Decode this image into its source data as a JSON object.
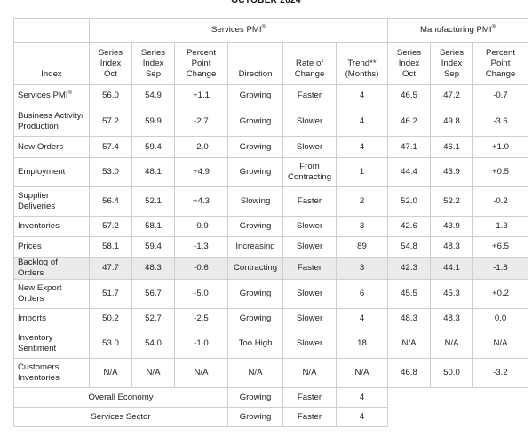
{
  "header_title": "OCTOBER 2024",
  "groups": {
    "services": "Services PMI",
    "manufacturing": "Manufacturing PMI",
    "reg_mark": "®"
  },
  "columns": {
    "index": "Index",
    "svc_oct": "Series Index Oct",
    "svc_sep": "Series Index Sep",
    "svc_ppc": "Percent Point Change",
    "direction": "Direction",
    "rate": "Rate of Change",
    "trend": "Trend** (Months)",
    "mfg_oct": "Series Index Oct",
    "mfg_sep": "Series Index Sep",
    "mfg_ppc": "Percent Point Change"
  },
  "rows": [
    {
      "index": "Services PMI",
      "reg": "®",
      "svc_oct": "56.0",
      "svc_sep": "54.9",
      "svc_ppc": "+1.1",
      "direction": "Growing",
      "rate": "Faster",
      "trend": "4",
      "mfg_oct": "46.5",
      "mfg_sep": "47.2",
      "mfg_ppc": "-0.7"
    },
    {
      "index": "Business Activity/ Production",
      "reg": "",
      "svc_oct": "57.2",
      "svc_sep": "59.9",
      "svc_ppc": "-2.7",
      "direction": "Growing",
      "rate": "Slower",
      "trend": "4",
      "mfg_oct": "46.2",
      "mfg_sep": "49.8",
      "mfg_ppc": "-3.6"
    },
    {
      "index": "New Orders",
      "reg": "",
      "svc_oct": "57.4",
      "svc_sep": "59.4",
      "svc_ppc": "-2.0",
      "direction": "Growing",
      "rate": "Slower",
      "trend": "4",
      "mfg_oct": "47.1",
      "mfg_sep": "46.1",
      "mfg_ppc": "+1.0"
    },
    {
      "index": "Employment",
      "reg": "",
      "svc_oct": "53.0",
      "svc_sep": "48.1",
      "svc_ppc": "+4.9",
      "direction": "Growing",
      "rate": "From Contracting",
      "trend": "1",
      "mfg_oct": "44.4",
      "mfg_sep": "43.9",
      "mfg_ppc": "+0.5"
    },
    {
      "index": "Supplier Deliveries",
      "reg": "",
      "svc_oct": "56.4",
      "svc_sep": "52.1",
      "svc_ppc": "+4.3",
      "direction": "Slowing",
      "rate": "Faster",
      "trend": "2",
      "mfg_oct": "52.0",
      "mfg_sep": "52.2",
      "mfg_ppc": "-0.2"
    },
    {
      "index": "Inventories",
      "reg": "",
      "svc_oct": "57.2",
      "svc_sep": "58.1",
      "svc_ppc": "-0.9",
      "direction": "Growing",
      "rate": "Slower",
      "trend": "3",
      "mfg_oct": "42.6",
      "mfg_sep": "43.9",
      "mfg_ppc": "-1.3"
    },
    {
      "index": "Prices",
      "reg": "",
      "svc_oct": "58.1",
      "svc_sep": "59.4",
      "svc_ppc": "-1.3",
      "direction": "Increasing",
      "rate": "Slower",
      "trend": "89",
      "mfg_oct": "54.8",
      "mfg_sep": "48.3",
      "mfg_ppc": "+6.5"
    },
    {
      "index": "Backlog of Orders",
      "reg": "",
      "svc_oct": "47.7",
      "svc_sep": "48.3",
      "svc_ppc": "-0.6",
      "direction": "Contracting",
      "rate": "Faster",
      "trend": "3",
      "mfg_oct": "42.3",
      "mfg_sep": "44.1",
      "mfg_ppc": "-1.8"
    },
    {
      "index": "New Export Orders",
      "reg": "",
      "svc_oct": "51.7",
      "svc_sep": "56.7",
      "svc_ppc": "-5.0",
      "direction": "Growing",
      "rate": "Slower",
      "trend": "6",
      "mfg_oct": "45.5",
      "mfg_sep": "45.3",
      "mfg_ppc": "+0.2"
    },
    {
      "index": "Imports",
      "reg": "",
      "svc_oct": "50.2",
      "svc_sep": "52.7",
      "svc_ppc": "-2.5",
      "direction": "Growing",
      "rate": "Slower",
      "trend": "4",
      "mfg_oct": "48.3",
      "mfg_sep": "48.3",
      "mfg_ppc": "0.0"
    },
    {
      "index": "Inventory Sentiment",
      "reg": "",
      "svc_oct": "53.0",
      "svc_sep": "54.0",
      "svc_ppc": "-1.0",
      "direction": "Too High",
      "rate": "Slower",
      "trend": "18",
      "mfg_oct": "N/A",
      "mfg_sep": "N/A",
      "mfg_ppc": "N/A"
    },
    {
      "index": "Customers' Inventories",
      "reg": "",
      "svc_oct": "N/A",
      "svc_sep": "N/A",
      "svc_ppc": "N/A",
      "direction": "N/A",
      "rate": "N/A",
      "trend": "N/A",
      "mfg_oct": "46.8",
      "mfg_sep": "50.0",
      "mfg_ppc": "-3.2"
    }
  ],
  "summary_rows": [
    {
      "label": "Overall Economy",
      "direction": "Growing",
      "rate": "Faster",
      "trend": "4"
    },
    {
      "label": "Services Sector",
      "direction": "Growing",
      "rate": "Faster",
      "trend": "4"
    }
  ],
  "highlight_color": "#ebebeb"
}
